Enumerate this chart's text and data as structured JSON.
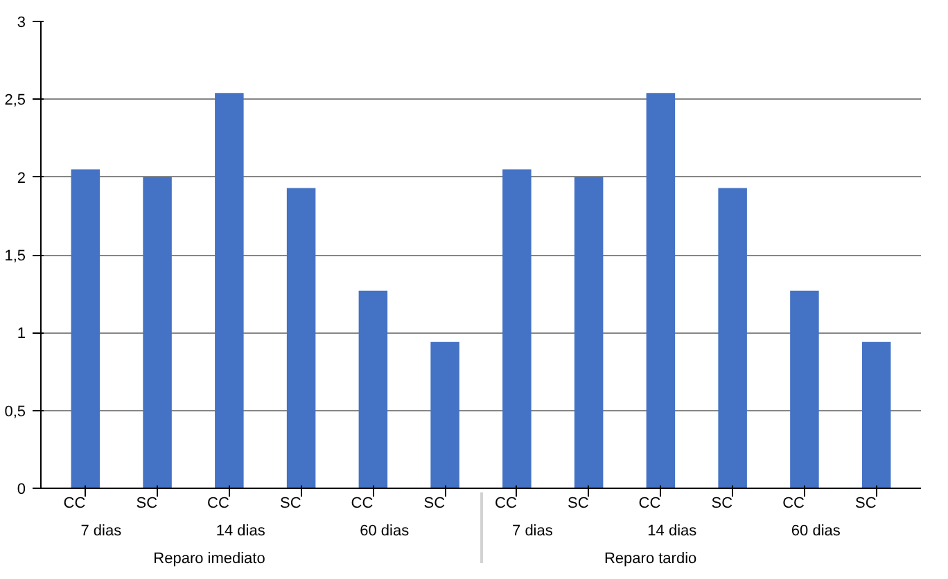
{
  "chart_data": {
    "type": "bar",
    "categories": [
      "CC",
      "SC",
      "CC",
      "SC",
      "CC",
      "SC",
      "CC",
      "SC",
      "CC",
      "SC",
      "CC",
      "SC"
    ],
    "annotations": [
      "7 dias",
      "14 dias",
      "60 dias",
      "7 dias",
      "14 dias",
      "60 dias",
      "Reparo imediato",
      "Reparo tardio"
    ],
    "series": [
      {
        "color": "#4472c4",
        "values": [
          2.05,
          2.0,
          2.54,
          1.93,
          1.27,
          0.94,
          2.05,
          2.0,
          2.54,
          1.93,
          1.27,
          0.94
        ]
      }
    ],
    "ylim": [
      0,
      3
    ],
    "yticks": [
      0,
      {
        "value": 0.5,
        "label": "0,5"
      },
      1,
      {
        "value": 1.5,
        "label": "1,5"
      },
      2,
      {
        "value": 2.5,
        "label": "2,5"
      },
      3
    ],
    "grid": "y"
  }
}
